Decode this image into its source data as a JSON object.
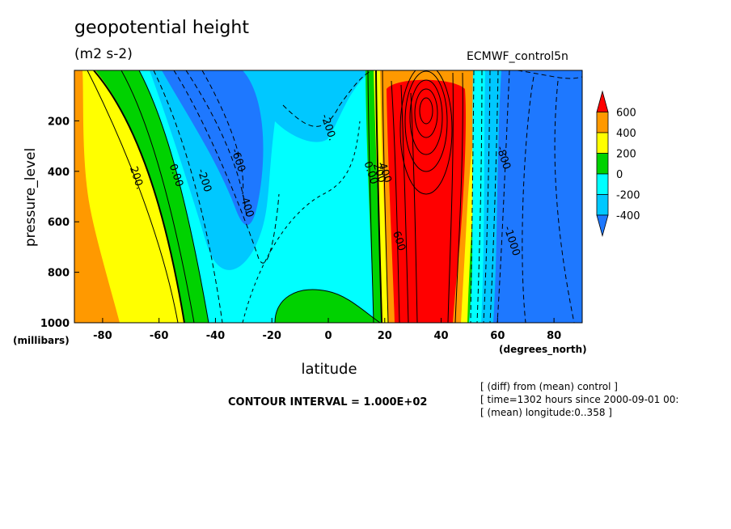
{
  "header": {
    "title": "geopotential height",
    "units": "(m2 s-2)",
    "dataset": "ECMWF_control5n"
  },
  "footer": {
    "contour_interval": "CONTOUR INTERVAL = 1.000E+02",
    "info": [
      "[ (diff) from (mean) control ]",
      "[ time=1302 hours since 2000-09-01 00:",
      "[ (mean) longitude:0..358 ]"
    ]
  },
  "chart_data": {
    "type": "heatmap",
    "title": "geopotential height",
    "subtitle": "(m2 s-2)",
    "xlabel": "latitude",
    "x_unit": "(degrees_north)",
    "ylabel": "pressure_level",
    "y_unit": "(millibars)",
    "xlim": [
      -90,
      90
    ],
    "ylim": [
      1000,
      0
    ],
    "x_ticks": [
      -80,
      -60,
      -40,
      -20,
      0,
      20,
      40,
      60,
      80
    ],
    "x_tick_labels": [
      "-80",
      "-60",
      "-40",
      "-20",
      "0",
      "20",
      "40",
      "60",
      "80"
    ],
    "y_ticks": [
      200,
      400,
      600,
      800,
      1000
    ],
    "y_tick_labels": [
      "200",
      "400",
      "600",
      "800",
      "1000"
    ],
    "contour_interval": 100,
    "colorbar": {
      "levels": [
        -400,
        -200,
        0,
        200,
        400,
        600
      ],
      "labels": [
        "-400",
        "-200",
        "0",
        "200",
        "400",
        "600"
      ],
      "colors": [
        "#1e78ff",
        "#00c8ff",
        "#00ffff",
        "#00d200",
        "#ffff00",
        "#ff9900",
        "#ff0000"
      ]
    },
    "contour_labels": [
      {
        "text": "-200.",
        "x": -1,
        "p": 230
      },
      {
        "text": "-600",
        "x": -33,
        "p": 360
      },
      {
        "text": "-400",
        "x": -30,
        "p": 540
      },
      {
        "text": "200.",
        "x": -69,
        "p": 430
      },
      {
        "text": "0.00",
        "x": -55,
        "p": 420
      },
      {
        "text": "-200",
        "x": -45,
        "p": 440
      },
      {
        "text": "0.00",
        "x": 14,
        "p": 410
      },
      {
        "text": "200",
        "x": 17,
        "p": 410
      },
      {
        "text": "400",
        "x": 19,
        "p": 410
      },
      {
        "text": "600",
        "x": 24,
        "p": 680
      },
      {
        "text": "-1000",
        "x": 64,
        "p": 680
      },
      {
        "text": "-800",
        "x": 61,
        "p": 350
      }
    ]
  }
}
